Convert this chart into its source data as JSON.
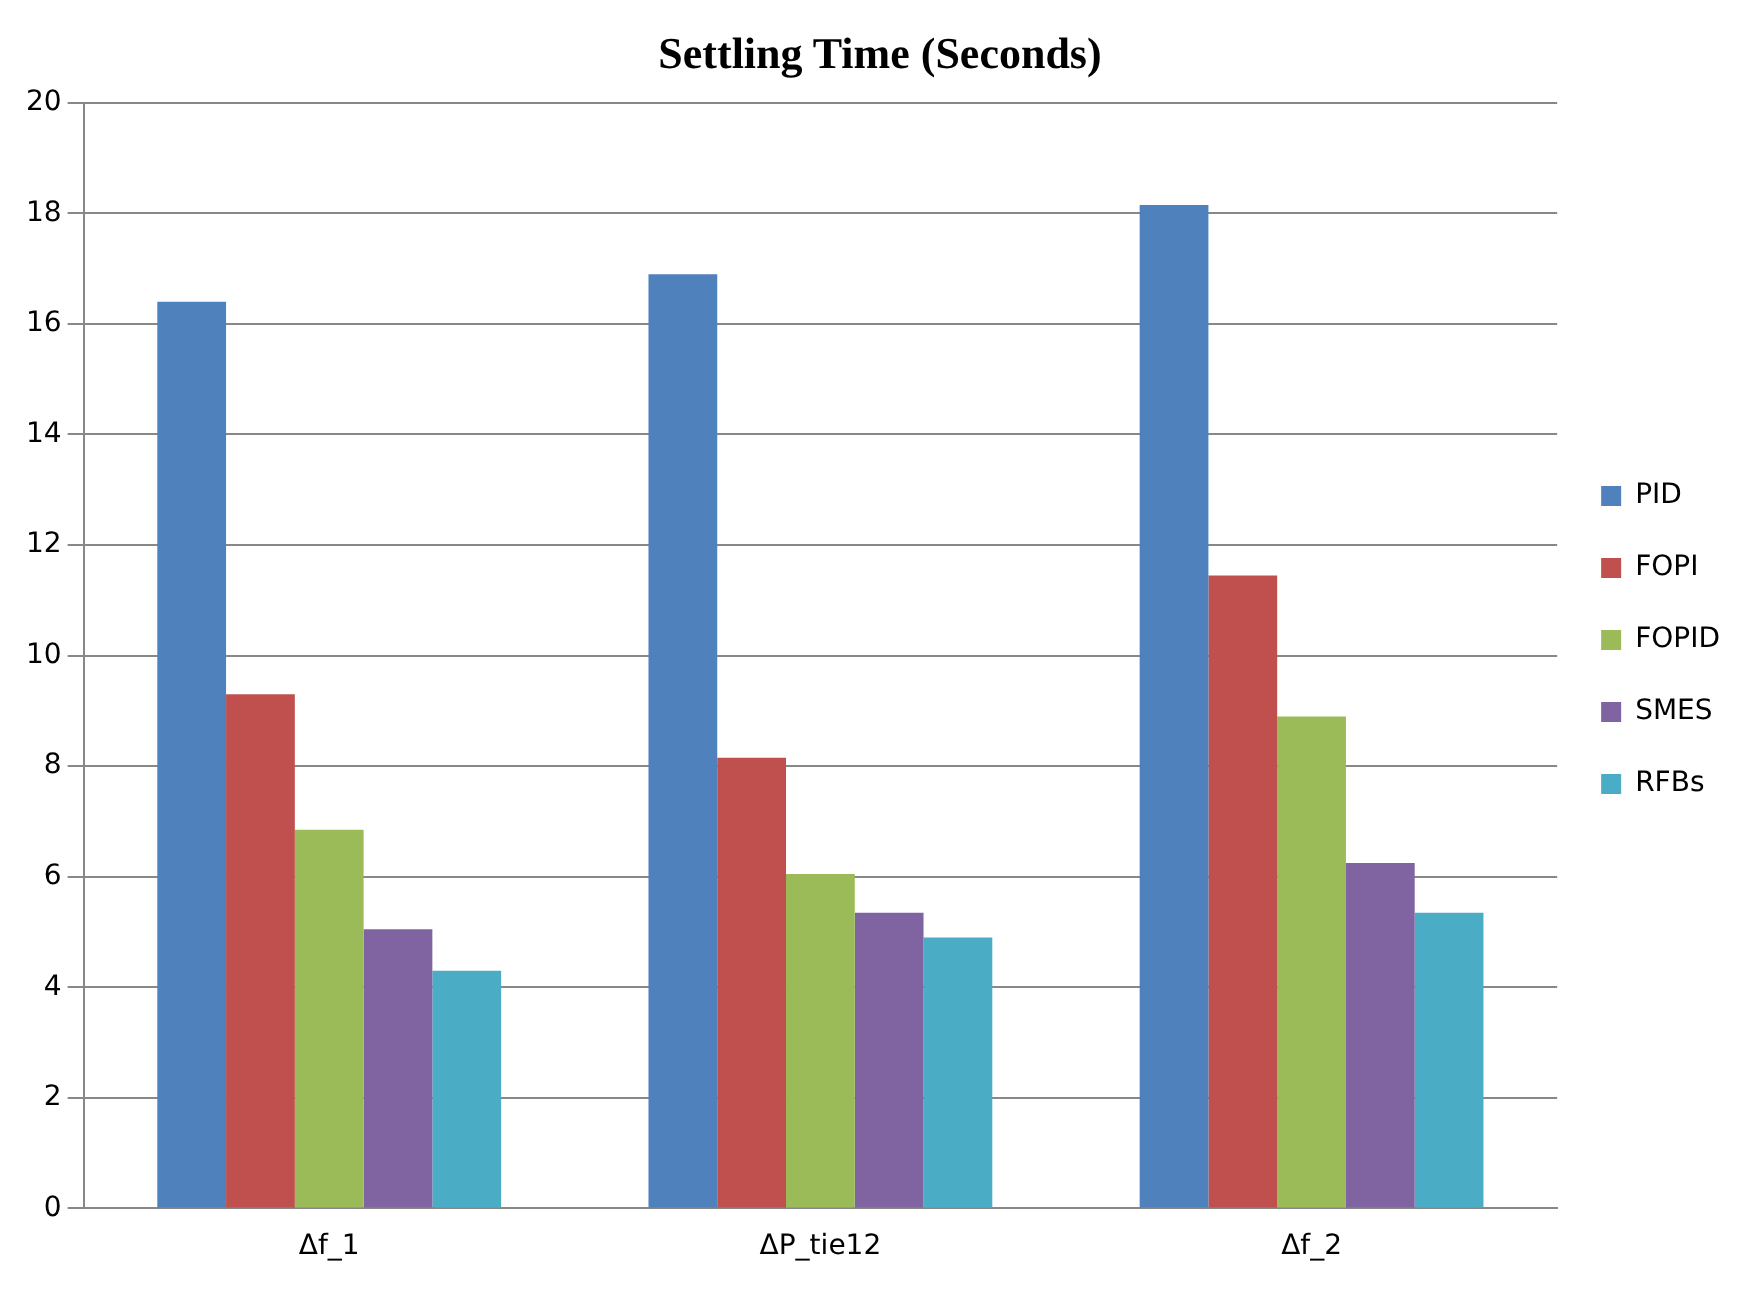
{
  "chart_data": {
    "type": "bar",
    "title": "Settling Time (Seconds)",
    "categories": [
      "Δf_1",
      "ΔP_tie12",
      "Δf_2"
    ],
    "series": [
      {
        "name": "PID",
        "color": "#4f81bd",
        "values": [
          16.4,
          16.9,
          18.15
        ]
      },
      {
        "name": "FOPI",
        "color": "#c0504d",
        "values": [
          9.3,
          8.15,
          11.45
        ]
      },
      {
        "name": "FOPID",
        "color": "#9bbb59",
        "values": [
          6.85,
          6.05,
          8.9
        ]
      },
      {
        "name": "SMES",
        "color": "#8064a2",
        "values": [
          5.05,
          5.35,
          6.25
        ]
      },
      {
        "name": "RFBs",
        "color": "#4bacc6",
        "values": [
          4.3,
          4.9,
          5.35
        ]
      }
    ],
    "ylim": [
      0,
      20
    ],
    "yticks": [
      0,
      2,
      4,
      6,
      8,
      10,
      12,
      14,
      16,
      18,
      20
    ],
    "grid": "y",
    "legend": "right"
  }
}
